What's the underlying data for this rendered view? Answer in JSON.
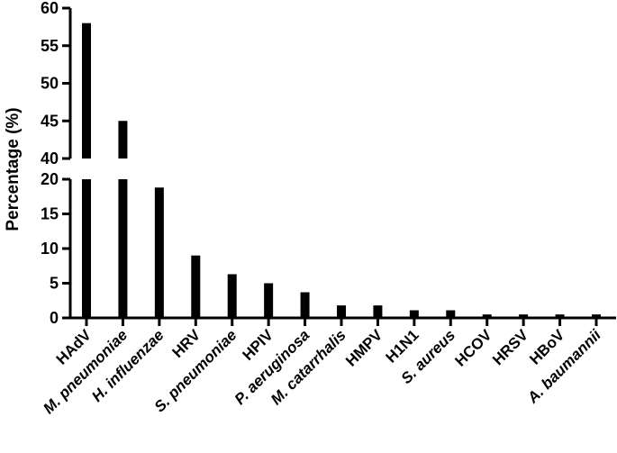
{
  "chart_data": {
    "type": "bar",
    "title": "",
    "xlabel": "",
    "ylabel": "Percentage (%)",
    "y_axis": {
      "broken": true,
      "lower_segment": {
        "range": [
          0,
          20
        ],
        "ticks": [
          0,
          5,
          10,
          15,
          20
        ]
      },
      "upper_segment": {
        "range": [
          40,
          60
        ],
        "ticks": [
          40,
          45,
          50,
          55,
          60
        ]
      }
    },
    "grid": false,
    "legend": "none",
    "bar_color": "#000000",
    "categories": [
      {
        "label": "HAdV",
        "italic": false
      },
      {
        "label": "M. pneumoniae",
        "italic": true
      },
      {
        "label": "H. influenzae",
        "italic": true
      },
      {
        "label": "HRV",
        "italic": false
      },
      {
        "label": "S. pneumoniae",
        "italic": true
      },
      {
        "label": "HPIV",
        "italic": false
      },
      {
        "label": "P. aeruginosa",
        "italic": true
      },
      {
        "label": "M. catarrhalis",
        "italic": true
      },
      {
        "label": "HMPV",
        "italic": false
      },
      {
        "label": "H1N1",
        "italic": false
      },
      {
        "label": "S. aureus",
        "italic": true
      },
      {
        "label": "HCOV",
        "italic": false
      },
      {
        "label": "HRSV",
        "italic": false
      },
      {
        "label": "HBoV",
        "italic": false
      },
      {
        "label": "A. baumannii",
        "italic": true
      }
    ],
    "values": [
      58,
      45,
      18.8,
      9,
      6.3,
      5,
      3.7,
      1.8,
      1.8,
      1.1,
      1.1,
      0.5,
      0.5,
      0.5,
      0.5
    ]
  }
}
